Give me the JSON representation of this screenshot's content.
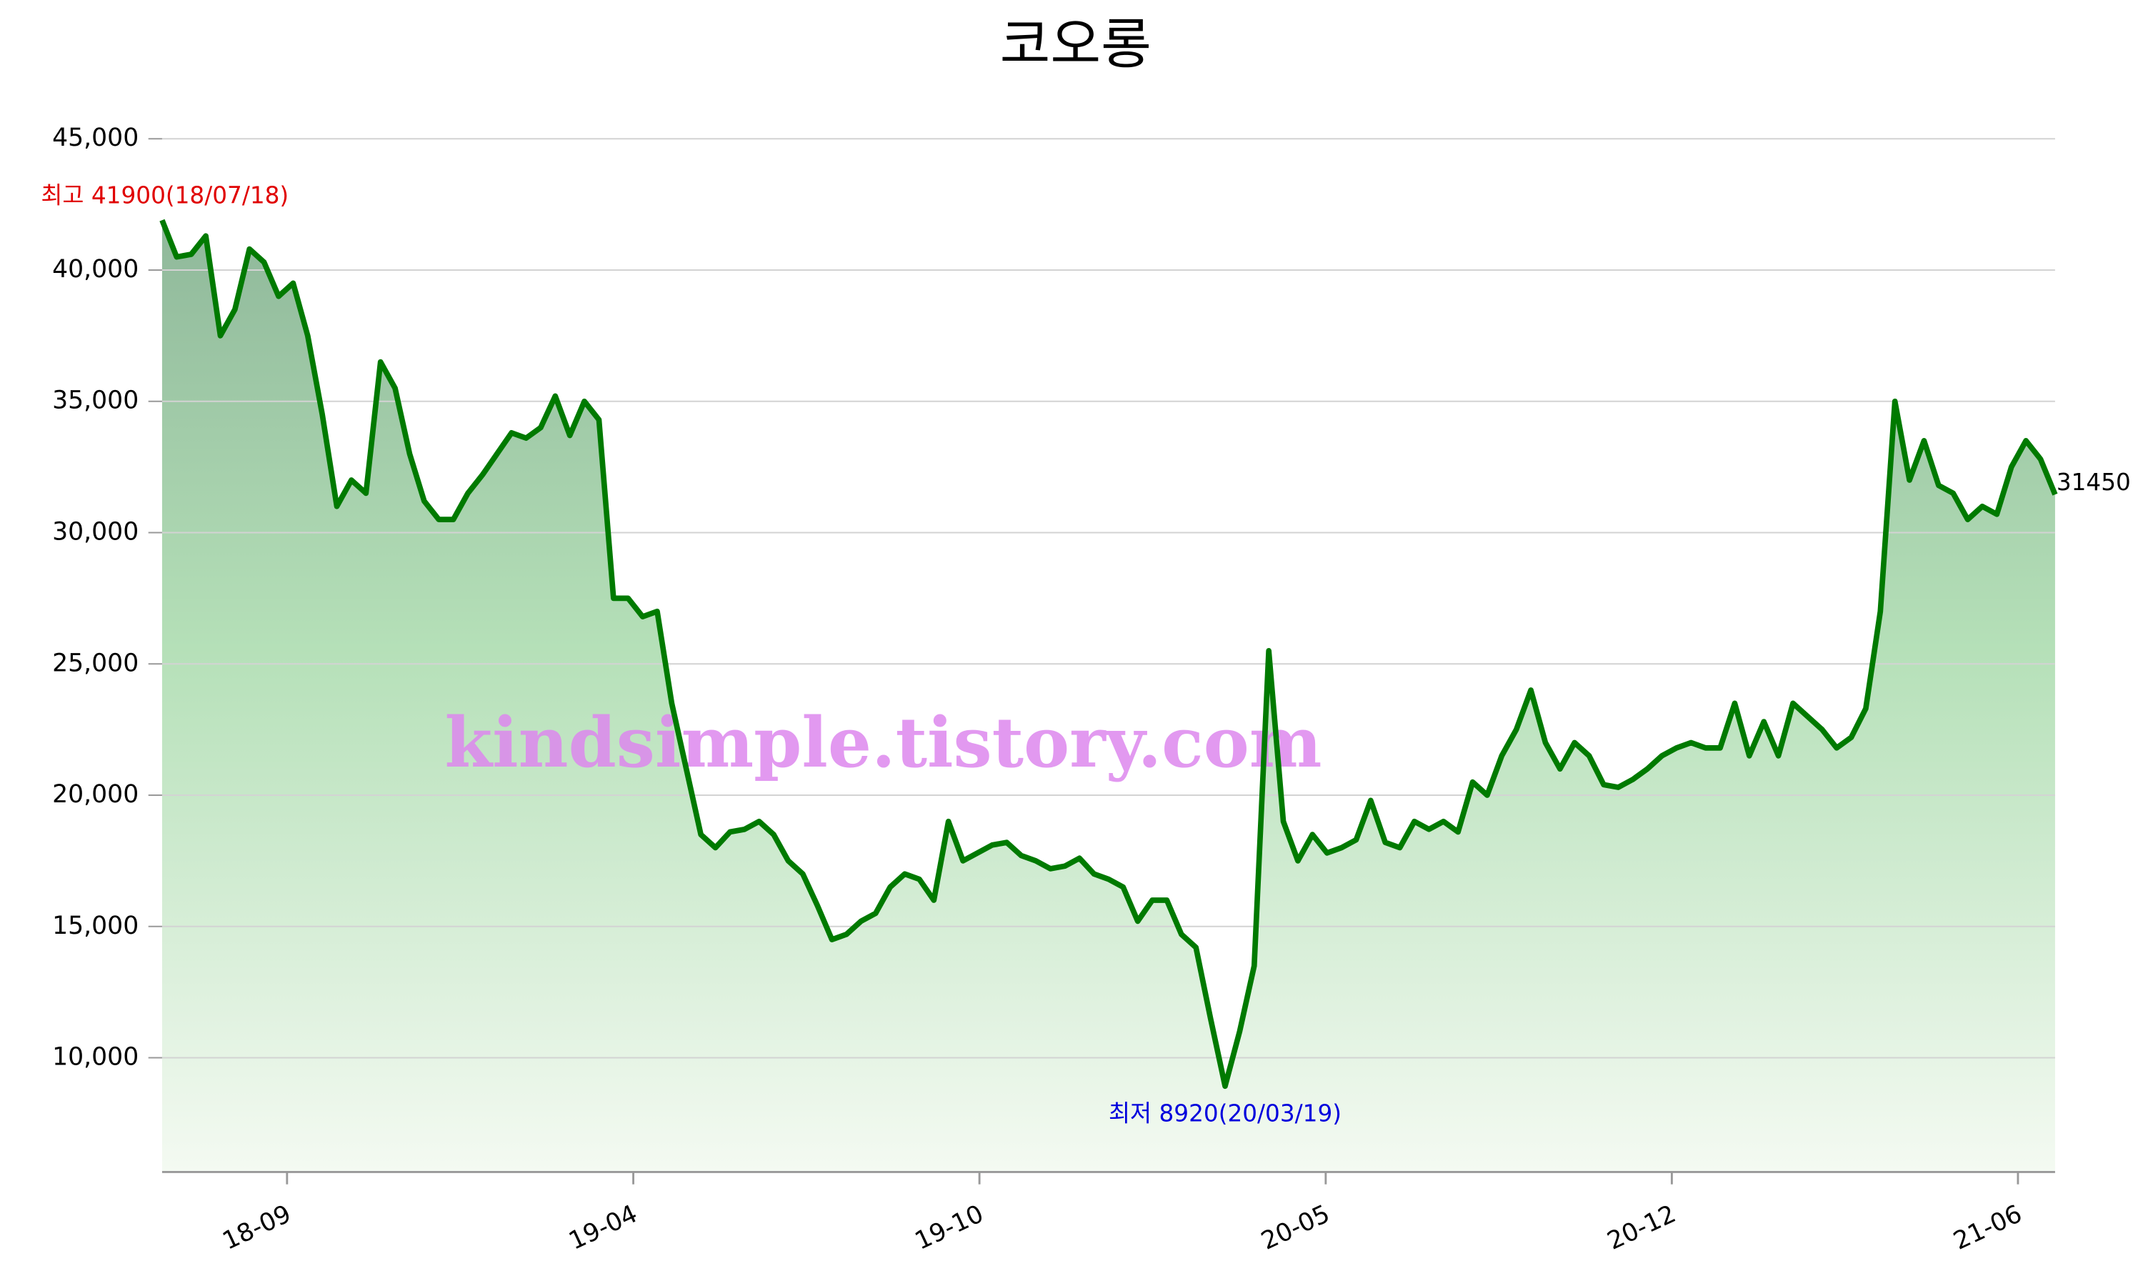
{
  "chart_data": {
    "type": "line",
    "title": "코오롱",
    "watermark": "kindsimple.tistory.com",
    "annotations": [
      {
        "text": "최고 41900(18/07/18)",
        "index": 0,
        "color": "#e00000"
      },
      {
        "text": "최저 8920(20/03/19)",
        "index": 73,
        "color": "#0000dd"
      },
      {
        "text": "31450",
        "index": 130,
        "color": "#000000"
      }
    ],
    "series": [
      {
        "name": "코오롱",
        "color": "#007a00",
        "values": [
          41900,
          40500,
          40600,
          41300,
          37500,
          38500,
          40800,
          40300,
          39000,
          39500,
          37500,
          34500,
          31000,
          32000,
          31500,
          36500,
          35500,
          33000,
          31200,
          30500,
          30500,
          31500,
          32200,
          33000,
          33800,
          33600,
          34000,
          35200,
          33700,
          35000,
          34300,
          27500,
          27500,
          26800,
          27000,
          23500,
          21000,
          18500,
          18000,
          18600,
          18700,
          19000,
          18500,
          17500,
          17000,
          15800,
          14500,
          14700,
          15200,
          15500,
          16500,
          17000,
          16800,
          16000,
          19000,
          17500,
          17800,
          18100,
          18200,
          17700,
          17500,
          17200,
          17300,
          17600,
          17000,
          16800,
          16500,
          15200,
          16000,
          16000,
          14700,
          14200,
          11500,
          8920,
          11000,
          13500,
          25500,
          19000,
          17500,
          18500,
          17800,
          18000,
          18300,
          19800,
          18200,
          18000,
          19000,
          18700,
          19000,
          18600,
          20500,
          20000,
          21500,
          22500,
          24000,
          22000,
          21000,
          22000,
          21500,
          20400,
          20300,
          20600,
          21000,
          21500,
          21800,
          22000,
          21800,
          21800,
          23500,
          21500,
          22800,
          21500,
          23500,
          23000,
          22500,
          21800,
          22200,
          23300,
          27000,
          35000,
          32000,
          33500,
          31800,
          31500,
          30500,
          31000,
          30700,
          32500,
          33500,
          32800,
          31450
        ]
      }
    ],
    "xlim": [
      0,
      130
    ],
    "xticks": [
      {
        "value": 8.58,
        "label": "18-09"
      },
      {
        "value": 32.36,
        "label": "19-04"
      },
      {
        "value": 56.13,
        "label": "19-10"
      },
      {
        "value": 79.91,
        "label": "20-05"
      },
      {
        "value": 103.68,
        "label": "20-12"
      },
      {
        "value": 127.45,
        "label": "21-06"
      }
    ],
    "ylim": [
      5650,
      45000
    ],
    "yticks": [
      {
        "value": 10000,
        "label": "10,000"
      },
      {
        "value": 15000,
        "label": "15,000"
      },
      {
        "value": 20000,
        "label": "20,000"
      },
      {
        "value": 25000,
        "label": "25,000"
      },
      {
        "value": 30000,
        "label": "30,000"
      },
      {
        "value": 35000,
        "label": "35,000"
      },
      {
        "value": 40000,
        "label": "40,000"
      },
      {
        "value": 45000,
        "label": "45,000"
      }
    ],
    "grid": true
  }
}
